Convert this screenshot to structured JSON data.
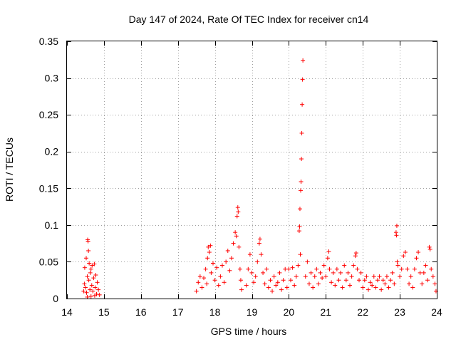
{
  "chart_data": {
    "type": "scatter",
    "title": "Day 147 of 2024, Rate Of TEC Index for receiver cn14",
    "xlabel": "GPS time / hours",
    "ylabel": "ROTI / TECUs",
    "xlim": [
      14,
      24
    ],
    "ylim": [
      0,
      0.35
    ],
    "x_ticks": [
      14,
      15,
      16,
      17,
      18,
      19,
      20,
      21,
      22,
      23,
      24
    ],
    "y_ticks": [
      0,
      0.05,
      0.1,
      0.15,
      0.2,
      0.25,
      0.3,
      0.35
    ],
    "x_tick_labels": [
      "14",
      "15",
      "16",
      "17",
      "18",
      "19",
      "20",
      "21",
      "22",
      "23",
      "24"
    ],
    "y_tick_labels": [
      "0",
      "0.05",
      "0.1",
      "0.15",
      "0.2",
      "0.25",
      "0.3",
      "0.35"
    ],
    "grid": true,
    "marker": "+",
    "marker_color": "#ff0000",
    "series": [
      {
        "name": "ROTI",
        "points": [
          [
            14.45,
            0.01
          ],
          [
            14.47,
            0.02
          ],
          [
            14.48,
            0.042
          ],
          [
            14.5,
            0.015
          ],
          [
            14.52,
            0.055
          ],
          [
            14.53,
            0.008
          ],
          [
            14.55,
            0.03
          ],
          [
            14.56,
            0.08
          ],
          [
            14.57,
            0.078
          ],
          [
            14.58,
            0.065
          ],
          [
            14.59,
            0.025
          ],
          [
            14.6,
            0.048
          ],
          [
            14.62,
            0.012
          ],
          [
            14.63,
            0.035
          ],
          [
            14.65,
            0.04
          ],
          [
            14.67,
            0.018
          ],
          [
            14.68,
            0.045
          ],
          [
            14.7,
            0.01
          ],
          [
            14.72,
            0.028
          ],
          [
            14.74,
            0.047
          ],
          [
            14.76,
            0.015
          ],
          [
            14.78,
            0.032
          ],
          [
            14.8,
            0.006
          ],
          [
            14.82,
            0.022
          ],
          [
            14.85,
            0.012
          ],
          [
            14.88,
            0.005
          ],
          [
            14.55,
            0.002
          ],
          [
            14.65,
            0.003
          ],
          [
            14.75,
            0.004
          ],
          [
            17.5,
            0.01
          ],
          [
            17.55,
            0.022
          ],
          [
            17.6,
            0.03
          ],
          [
            17.65,
            0.015
          ],
          [
            17.7,
            0.028
          ],
          [
            17.75,
            0.04
          ],
          [
            17.78,
            0.02
          ],
          [
            17.8,
            0.055
          ],
          [
            17.82,
            0.07
          ],
          [
            17.85,
            0.063
          ],
          [
            17.88,
            0.072
          ],
          [
            17.9,
            0.035
          ],
          [
            17.95,
            0.048
          ],
          [
            18.0,
            0.025
          ],
          [
            18.05,
            0.042
          ],
          [
            18.1,
            0.018
          ],
          [
            18.15,
            0.03
          ],
          [
            18.2,
            0.045
          ],
          [
            18.25,
            0.022
          ],
          [
            18.3,
            0.05
          ],
          [
            18.35,
            0.065
          ],
          [
            18.4,
            0.038
          ],
          [
            18.45,
            0.055
          ],
          [
            18.5,
            0.075
          ],
          [
            18.55,
            0.09
          ],
          [
            18.58,
            0.085
          ],
          [
            18.6,
            0.112
          ],
          [
            18.62,
            0.124
          ],
          [
            18.63,
            0.118
          ],
          [
            18.65,
            0.07
          ],
          [
            18.68,
            0.04
          ],
          [
            18.7,
            0.025
          ],
          [
            18.72,
            0.012
          ],
          [
            18.85,
            0.018
          ],
          [
            18.9,
            0.04
          ],
          [
            18.95,
            0.06
          ],
          [
            19.0,
            0.035
          ],
          [
            19.05,
            0.022
          ],
          [
            19.1,
            0.03
          ],
          [
            19.15,
            0.05
          ],
          [
            19.2,
            0.075
          ],
          [
            19.22,
            0.081
          ],
          [
            19.25,
            0.06
          ],
          [
            19.3,
            0.035
          ],
          [
            19.35,
            0.02
          ],
          [
            19.4,
            0.04
          ],
          [
            19.45,
            0.015
          ],
          [
            19.5,
            0.025
          ],
          [
            19.55,
            0.01
          ],
          [
            19.6,
            0.03
          ],
          [
            19.65,
            0.018
          ],
          [
            19.7,
            0.022
          ],
          [
            19.75,
            0.035
          ],
          [
            19.8,
            0.012
          ],
          [
            19.85,
            0.025
          ],
          [
            19.9,
            0.04
          ],
          [
            19.95,
            0.015
          ],
          [
            20.0,
            0.04
          ],
          [
            20.05,
            0.025
          ],
          [
            20.1,
            0.042
          ],
          [
            20.15,
            0.018
          ],
          [
            20.2,
            0.03
          ],
          [
            20.25,
            0.045
          ],
          [
            20.3,
            0.122
          ],
          [
            20.32,
            0.147
          ],
          [
            20.33,
            0.159
          ],
          [
            20.34,
            0.19
          ],
          [
            20.35,
            0.225
          ],
          [
            20.36,
            0.264
          ],
          [
            20.37,
            0.298
          ],
          [
            20.38,
            0.324
          ],
          [
            20.29,
            0.098
          ],
          [
            20.28,
            0.092
          ],
          [
            20.31,
            0.06
          ],
          [
            20.45,
            0.03
          ],
          [
            20.5,
            0.05
          ],
          [
            20.55,
            0.02
          ],
          [
            20.6,
            0.035
          ],
          [
            20.65,
            0.015
          ],
          [
            20.7,
            0.03
          ],
          [
            20.75,
            0.04
          ],
          [
            20.8,
            0.02
          ],
          [
            20.85,
            0.035
          ],
          [
            20.9,
            0.028
          ],
          [
            20.95,
            0.045
          ],
          [
            21.0,
            0.03
          ],
          [
            21.05,
            0.055
          ],
          [
            21.08,
            0.064
          ],
          [
            21.1,
            0.04
          ],
          [
            21.15,
            0.022
          ],
          [
            21.2,
            0.035
          ],
          [
            21.25,
            0.018
          ],
          [
            21.3,
            0.04
          ],
          [
            21.35,
            0.025
          ],
          [
            21.4,
            0.035
          ],
          [
            21.45,
            0.015
          ],
          [
            21.5,
            0.045
          ],
          [
            21.55,
            0.025
          ],
          [
            21.6,
            0.035
          ],
          [
            21.65,
            0.018
          ],
          [
            21.7,
            0.03
          ],
          [
            21.75,
            0.045
          ],
          [
            21.8,
            0.058
          ],
          [
            21.82,
            0.062
          ],
          [
            21.85,
            0.04
          ],
          [
            21.9,
            0.025
          ],
          [
            21.95,
            0.035
          ],
          [
            22.0,
            0.015
          ],
          [
            22.05,
            0.025
          ],
          [
            22.1,
            0.03
          ],
          [
            22.15,
            0.012
          ],
          [
            22.2,
            0.022
          ],
          [
            22.25,
            0.018
          ],
          [
            22.3,
            0.03
          ],
          [
            22.35,
            0.015
          ],
          [
            22.4,
            0.025
          ],
          [
            22.45,
            0.03
          ],
          [
            22.5,
            0.012
          ],
          [
            22.55,
            0.025
          ],
          [
            22.6,
            0.02
          ],
          [
            22.65,
            0.03
          ],
          [
            22.7,
            0.015
          ],
          [
            22.75,
            0.025
          ],
          [
            22.8,
            0.035
          ],
          [
            22.85,
            0.02
          ],
          [
            22.9,
            0.09
          ],
          [
            22.92,
            0.099
          ],
          [
            22.91,
            0.086
          ],
          [
            22.93,
            0.05
          ],
          [
            22.95,
            0.045
          ],
          [
            23.0,
            0.03
          ],
          [
            23.05,
            0.04
          ],
          [
            23.1,
            0.058
          ],
          [
            23.15,
            0.063
          ],
          [
            23.2,
            0.04
          ],
          [
            23.25,
            0.02
          ],
          [
            23.3,
            0.03
          ],
          [
            23.35,
            0.015
          ],
          [
            23.4,
            0.04
          ],
          [
            23.45,
            0.055
          ],
          [
            23.5,
            0.063
          ],
          [
            23.55,
            0.035
          ],
          [
            23.6,
            0.02
          ],
          [
            23.65,
            0.035
          ],
          [
            23.7,
            0.045
          ],
          [
            23.75,
            0.025
          ],
          [
            23.8,
            0.07
          ],
          [
            23.82,
            0.067
          ],
          [
            23.85,
            0.04
          ],
          [
            23.9,
            0.03
          ],
          [
            23.95,
            0.02
          ],
          [
            23.98,
            0.01
          ]
        ]
      }
    ]
  }
}
